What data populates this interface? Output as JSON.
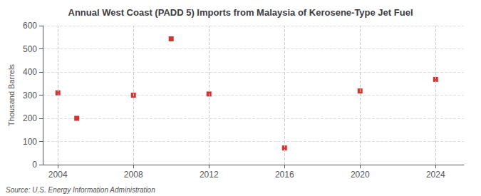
{
  "chart_data": {
    "type": "scatter",
    "title": "Annual West Coast (PADD 5) Imports from Malaysia of Kerosene-Type Jet Fuel",
    "ylabel": "Thousand Barrels",
    "source": "Source: U.S. Energy Information Administration",
    "x": [
      2004,
      2005,
      2008,
      2010,
      2012,
      2016,
      2020,
      2024
    ],
    "values": [
      310,
      200,
      300,
      543,
      305,
      72,
      318,
      368
    ],
    "color": "#cc0000",
    "marker": "square",
    "xlim": [
      2003.2,
      2025.5
    ],
    "xticks": [
      2004,
      2008,
      2012,
      2016,
      2020,
      2024
    ],
    "ylim": [
      0,
      600
    ],
    "yticks": [
      0,
      100,
      200,
      300,
      400,
      500,
      600
    ],
    "grid": true
  }
}
